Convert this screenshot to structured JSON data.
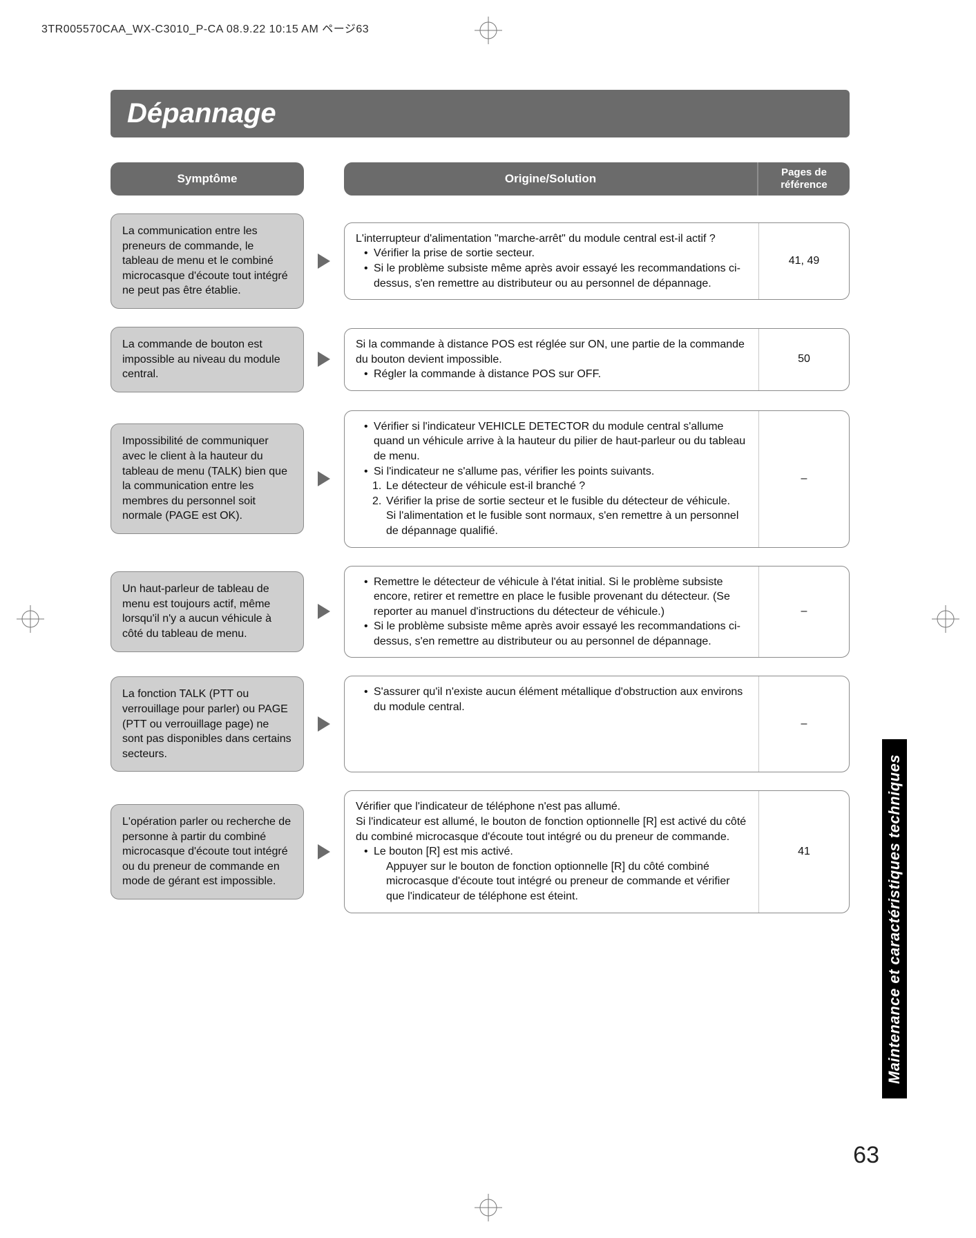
{
  "print_header": "3TR005570CAA_WX-C3010_P-CA  08.9.22  10:15 AM    ページ63",
  "title": "Dépannage",
  "headers": {
    "symptom": "Symptôme",
    "solution": "Origine/Solution",
    "pages": "Pages de référence"
  },
  "side_tab": "Maintenance et caractéristiques techniques",
  "page_number": "63",
  "colors": {
    "header_bg": "#6b6b6b",
    "symptom_bg": "#cfcfcf",
    "border": "#8a8a8a",
    "arrow": "#6b6b6b",
    "text": "#111111",
    "white": "#ffffff",
    "tab_bg": "#000000"
  },
  "rows": [
    {
      "symptom": "La communication entre les preneurs de commande, le tableau de menu et le combiné microcasque d'écoute tout intégré ne peut pas être établie.",
      "solution_lines": [
        {
          "cls": "",
          "text": "L'interrupteur d'alimentation \"marche-arrêt\" du module central est-il actif ?"
        },
        {
          "cls": "b1",
          "text": "Vérifier la prise de sortie secteur."
        },
        {
          "cls": "b1",
          "text": "Si le problème subsiste même après avoir essayé les recommandations ci-dessus, s'en remettre au distributeur ou au personnel de dépannage."
        }
      ],
      "pages": "41, 49"
    },
    {
      "symptom": "La commande de bouton est impossible au niveau du module central.",
      "solution_lines": [
        {
          "cls": "",
          "text": "Si la commande à distance POS est réglée sur ON, une partie de la commande du bouton devient impossible."
        },
        {
          "cls": "b1",
          "text": "Régler la commande à distance POS sur OFF."
        }
      ],
      "pages": "50"
    },
    {
      "symptom": "Impossibilité de communiquer avec le client à la hauteur du tableau de menu (TALK) bien que la communication entre les membres du personnel soit normale (PAGE est OK).",
      "solution_lines": [
        {
          "cls": "b1",
          "text": "Vérifier si l'indicateur VEHICLE DETECTOR du module central s'allume quand un véhicule arrive à la hauteur du pilier de haut-parleur ou du tableau de menu."
        },
        {
          "cls": "b1",
          "text": "Si l'indicateur ne s'allume pas, vérifier les points suivants."
        },
        {
          "cls": "n1",
          "num": "1.",
          "text": "Le détecteur de véhicule est-il branché ?"
        },
        {
          "cls": "n1",
          "num": "2.",
          "text": "Vérifier la prise de sortie secteur et le fusible du détecteur de véhicule."
        },
        {
          "cls": "indent2",
          "text": "Si l'alimentation et le fusible sont normaux, s'en remettre à un personnel de dépannage qualifié."
        }
      ],
      "pages": "–"
    },
    {
      "symptom": "Un haut-parleur de tableau de menu est toujours actif, même lorsqu'il n'y a aucun véhicule à côté du tableau de menu.",
      "solution_lines": [
        {
          "cls": "b1",
          "text": "Remettre le détecteur de véhicule à l'état initial. Si le problème subsiste encore, retirer et remettre en place le fusible provenant du détecteur. (Se reporter au manuel d'instructions du détecteur de véhicule.)"
        },
        {
          "cls": "b1",
          "text": "Si le problème subsiste même après avoir essayé les recommandations ci-dessus, s'en remettre au distributeur ou au personnel de dépannage."
        }
      ],
      "pages": "–"
    },
    {
      "symptom": "La fonction TALK (PTT ou verrouillage pour parler) ou PAGE (PTT ou verrouillage page) ne sont pas disponibles dans certains secteurs.",
      "solution_lines": [
        {
          "cls": "b1",
          "text": "S'assurer qu'il n'existe aucun élément métallique d'obstruction aux environs du module central."
        }
      ],
      "pages": "–",
      "min_height": 140
    },
    {
      "symptom": "L'opération parler ou recherche de personne à partir du combiné microcasque d'écoute tout intégré ou du preneur de commande en mode de gérant est impossible.",
      "solution_lines": [
        {
          "cls": "",
          "text": "Vérifier que l'indicateur de téléphone n'est pas allumé."
        },
        {
          "cls": "",
          "text": "Si l'indicateur est allumé, le bouton de fonction optionnelle [R] est activé du côté du combiné microcasque d'écoute tout intégré ou du preneur de commande."
        },
        {
          "cls": "b1",
          "text": "Le bouton [R] est mis activé."
        },
        {
          "cls": "indent2",
          "text": "Appuyer sur le bouton de fonction optionnelle [R] du côté combiné microcasque d'écoute tout intégré ou preneur de commande et vérifier que l'indicateur de téléphone est éteint."
        }
      ],
      "pages": "41"
    }
  ]
}
